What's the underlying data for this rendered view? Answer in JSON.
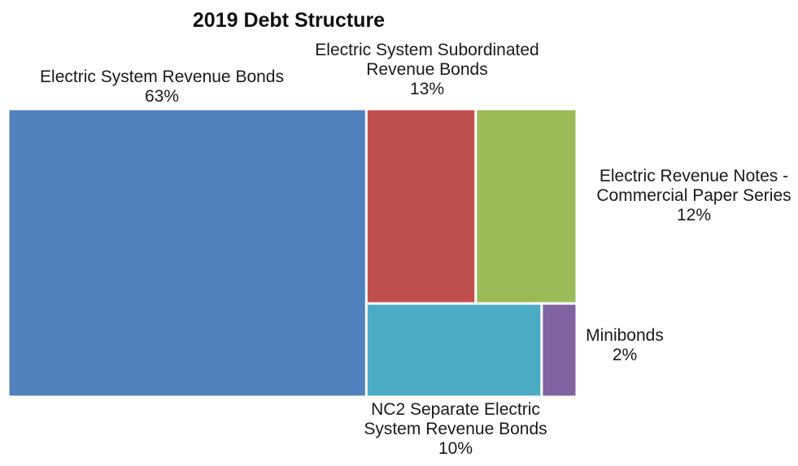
{
  "chart_data": {
    "type": "treemap",
    "title": "2019 Debt Structure",
    "unit": "%",
    "items": [
      {
        "name_lines": [
          "Electric System Revenue Bonds"
        ],
        "value": 63,
        "value_label": "63%",
        "color": "#4f81bd"
      },
      {
        "name_lines": [
          "Electric System Subordinated",
          "Revenue Bonds"
        ],
        "value": 13,
        "value_label": "13%",
        "color": "#c0504d"
      },
      {
        "name_lines": [
          "Electric Revenue Notes -",
          "Commercial Paper Series"
        ],
        "value": 12,
        "value_label": "12%",
        "color": "#9bbb59"
      },
      {
        "name_lines": [
          "NC2 Separate Electric",
          "System Revenue Bonds"
        ],
        "value": 10,
        "value_label": "10%",
        "color": "#4bacc6"
      },
      {
        "name_lines": [
          "Minibonds"
        ],
        "value": 2,
        "value_label": "2%",
        "color": "#8064a2"
      }
    ]
  }
}
